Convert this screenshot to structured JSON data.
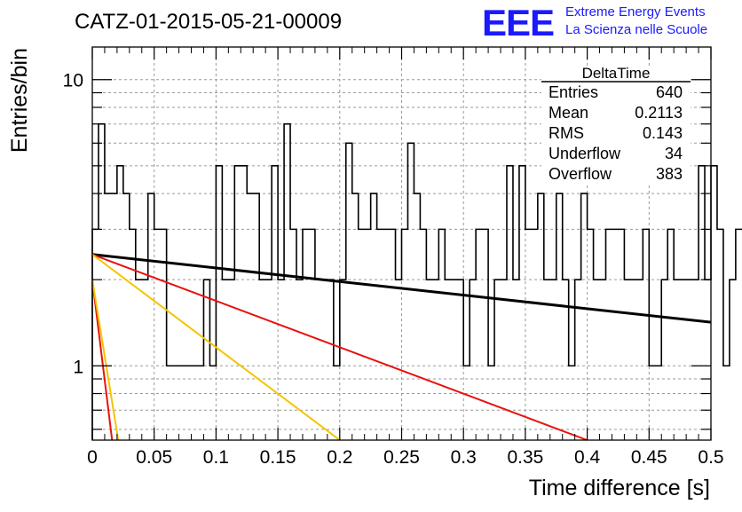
{
  "header": {
    "title": "CATZ-01-2015-05-21-00009",
    "logo_text": "EEE",
    "brand_line1": "Extreme Energy Events",
    "brand_line2": "La Scienza nelle Scuole"
  },
  "colors": {
    "brand": "#1a1aff",
    "histogram": "#000000",
    "fit_black": "#000000",
    "fit_red": "#e8120c",
    "fit_yellow": "#f5c400",
    "grid": "#9a9a9a"
  },
  "stats": {
    "title": "DeltaTime",
    "rows": [
      {
        "label": "Entries",
        "value": "640"
      },
      {
        "label": "Mean",
        "value": "0.2113"
      },
      {
        "label": "RMS",
        "value": "0.143"
      },
      {
        "label": "Underflow",
        "value": "34"
      },
      {
        "label": "Overflow",
        "value": "383"
      }
    ]
  },
  "chart_data": {
    "type": "histogram",
    "xlabel": "Time difference [s]",
    "ylabel": "Entries/bin",
    "xlim": [
      0,
      0.5
    ],
    "ylim": [
      0.55,
      13
    ],
    "yscale": "log",
    "grid": true,
    "x_ticks": [
      {
        "value": 0,
        "label": "0"
      },
      {
        "value": 0.05,
        "label": "0.05"
      },
      {
        "value": 0.1,
        "label": "0.1"
      },
      {
        "value": 0.15,
        "label": "0.15"
      },
      {
        "value": 0.2,
        "label": "0.2"
      },
      {
        "value": 0.25,
        "label": "0.25"
      },
      {
        "value": 0.3,
        "label": "0.3"
      },
      {
        "value": 0.35,
        "label": "0.35"
      },
      {
        "value": 0.4,
        "label": "0.4"
      },
      {
        "value": 0.45,
        "label": "0.45"
      },
      {
        "value": 0.5,
        "label": "0.5"
      }
    ],
    "y_ticks": [
      {
        "value": 1,
        "label": "1"
      },
      {
        "value": 10,
        "label": "10"
      }
    ],
    "bin_width": 0.005,
    "bin_start": 0,
    "bin_values": [
      3,
      7,
      4,
      4,
      5,
      4,
      3,
      2,
      2,
      4,
      3,
      3,
      1,
      1,
      1,
      1,
      1,
      1,
      2,
      1,
      5,
      2,
      2,
      5,
      5,
      4,
      4,
      2,
      2,
      5,
      2,
      7,
      3,
      2,
      3,
      3,
      2,
      2,
      2,
      1,
      2,
      6,
      4,
      3,
      3,
      4,
      3,
      3,
      3,
      2,
      3,
      6,
      4,
      3,
      2,
      2,
      3,
      2,
      2,
      2,
      1,
      2,
      3,
      3,
      1,
      2,
      2,
      5,
      2,
      5,
      3,
      3,
      4,
      2,
      2,
      4,
      2,
      1,
      2,
      4,
      3,
      2,
      2,
      3,
      3,
      3,
      2,
      2,
      2,
      3,
      1,
      1,
      2,
      3,
      2,
      2,
      2,
      2,
      5,
      2,
      5,
      3,
      1,
      2,
      3,
      3,
      1,
      2,
      3,
      3,
      2,
      1,
      2,
      3,
      4,
      2,
      1,
      2,
      2,
      2,
      2,
      2,
      2,
      2,
      2,
      2,
      2,
      2,
      2,
      2,
      2,
      2,
      2,
      2,
      2,
      1,
      2,
      2,
      1,
      2,
      3,
      2,
      2,
      2,
      1,
      2,
      2,
      1,
      2,
      2,
      2,
      2,
      2,
      2,
      2,
      2,
      2,
      2,
      2,
      1,
      2,
      2,
      2,
      2,
      2,
      2,
      2,
      2,
      2,
      2,
      2,
      2,
      2,
      2,
      2,
      2,
      2,
      2,
      2,
      2,
      2,
      2,
      2,
      2,
      2,
      2,
      2,
      2,
      2,
      2,
      2,
      2,
      2,
      2,
      2,
      2,
      2,
      2,
      2,
      2
    ],
    "fits": [
      {
        "color": "black",
        "points": [
          [
            0,
            2.45
          ],
          [
            0.5,
            1.42
          ]
        ]
      },
      {
        "color": "red",
        "points": [
          [
            0,
            2.45
          ],
          [
            0.4,
            0.55
          ]
        ]
      },
      {
        "color": "yellow",
        "points": [
          [
            0,
            2.45
          ],
          [
            0.2,
            0.55
          ]
        ]
      },
      {
        "color": "red",
        "points": [
          [
            0,
            2.0
          ],
          [
            0.016,
            0.55
          ]
        ]
      },
      {
        "color": "yellow",
        "points": [
          [
            0,
            2.0
          ],
          [
            0.021,
            0.55
          ]
        ]
      }
    ]
  }
}
